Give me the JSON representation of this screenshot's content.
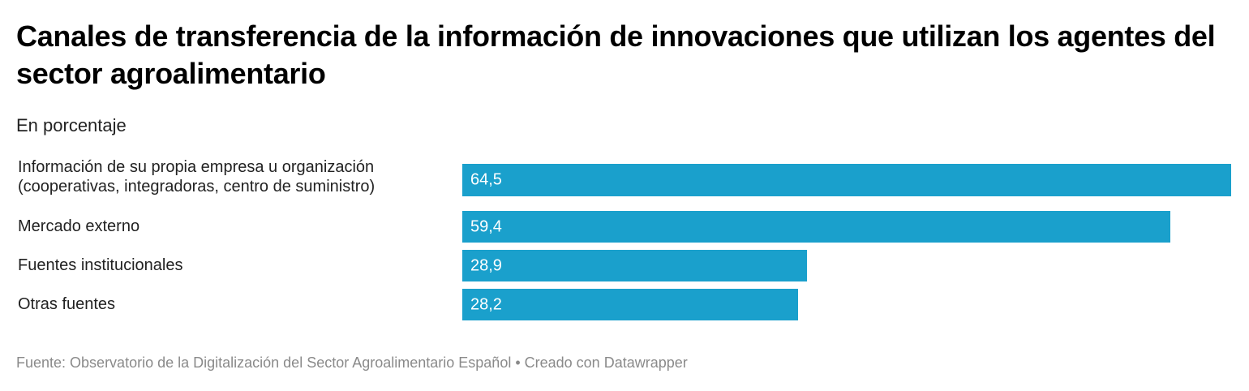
{
  "header": {
    "title": "Canales de transferencia de la información de innovaciones que utilizan los agentes del sector agroalimentario",
    "subtitle": "En porcentaje"
  },
  "chart_data": {
    "type": "bar",
    "orientation": "horizontal",
    "title": "Canales de transferencia de la información de innovaciones que utilizan los agentes del sector agroalimentario",
    "subtitle": "En porcentaje",
    "categories": [
      "Información de su propia empresa u organización (cooperativas, integradoras, centro de suministro)",
      "Mercado externo",
      "Fuentes institucionales",
      "Otras fuentes"
    ],
    "category_lines": [
      [
        "Información de su propia empresa u organización",
        "(cooperativas, integradoras, centro de suministro)"
      ],
      [
        "Mercado externo"
      ],
      [
        "Fuentes institucionales"
      ],
      [
        "Otras fuentes"
      ]
    ],
    "values": [
      64.5,
      59.4,
      28.9,
      28.2
    ],
    "value_labels": [
      "64,5",
      "59,4",
      "28,9",
      "28,2"
    ],
    "xlabel": "",
    "ylabel": "",
    "xlim": [
      0,
      64.5
    ],
    "grid": false,
    "bar_color": "#1aa0cc"
  },
  "footer": {
    "source": "Fuente: Observatorio de la Digitalización del Sector Agroalimentario Español • Creado con Datawrapper"
  }
}
